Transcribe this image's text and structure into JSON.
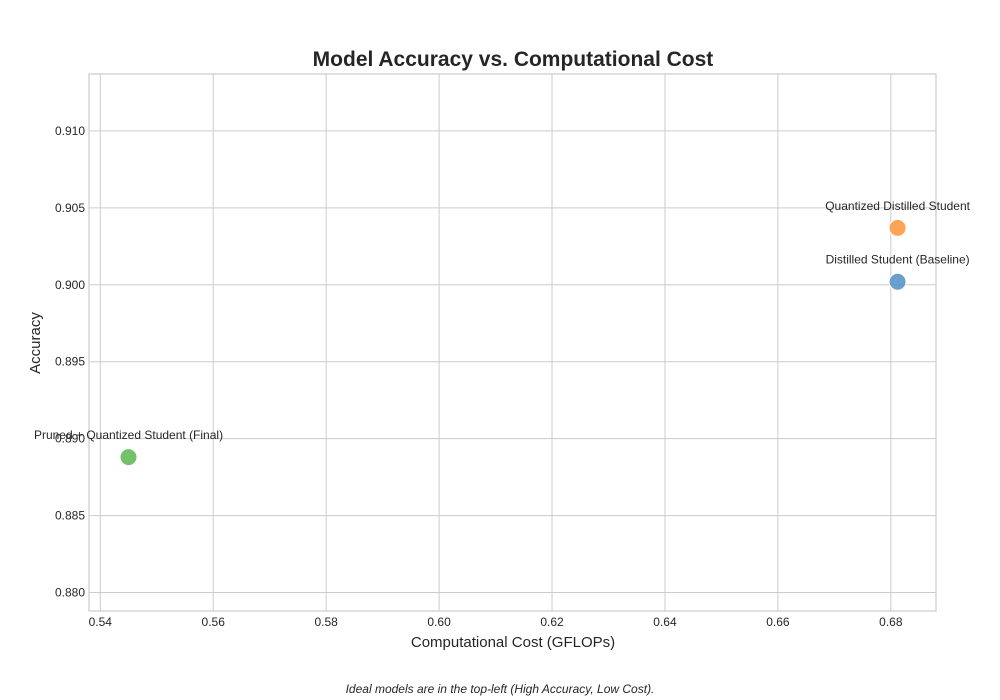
{
  "chart_data": {
    "type": "scatter",
    "title": "Model Accuracy vs. Computational Cost",
    "xlabel": "Computational Cost (GFLOPs)",
    "ylabel": "Accuracy",
    "xlim": [
      0.538,
      0.688
    ],
    "ylim": [
      0.8788,
      0.9137
    ],
    "xticks": [
      0.54,
      0.56,
      0.58,
      0.6,
      0.62,
      0.64,
      0.66,
      0.68
    ],
    "xtick_labels": [
      "0.54",
      "0.56",
      "0.58",
      "0.60",
      "0.62",
      "0.64",
      "0.66",
      "0.68"
    ],
    "yticks": [
      0.88,
      0.885,
      0.89,
      0.895,
      0.9,
      0.905,
      0.91
    ],
    "ytick_labels": [
      "0.880",
      "0.885",
      "0.890",
      "0.895",
      "0.900",
      "0.905",
      "0.910"
    ],
    "grid": true,
    "points": [
      {
        "label": "Distilled Student (Baseline)",
        "x": 0.6812,
        "y": 0.9002,
        "color": "#5a96c8"
      },
      {
        "label": "Quantized Distilled Student",
        "x": 0.6812,
        "y": 0.9037,
        "color": "#ff9945"
      },
      {
        "label": "Pruned + Quantized Student (Final)",
        "x": 0.545,
        "y": 0.8888,
        "color": "#64ba5a"
      }
    ],
    "caption": "Ideal models are in the top-left (High Accuracy, Low Cost)."
  }
}
